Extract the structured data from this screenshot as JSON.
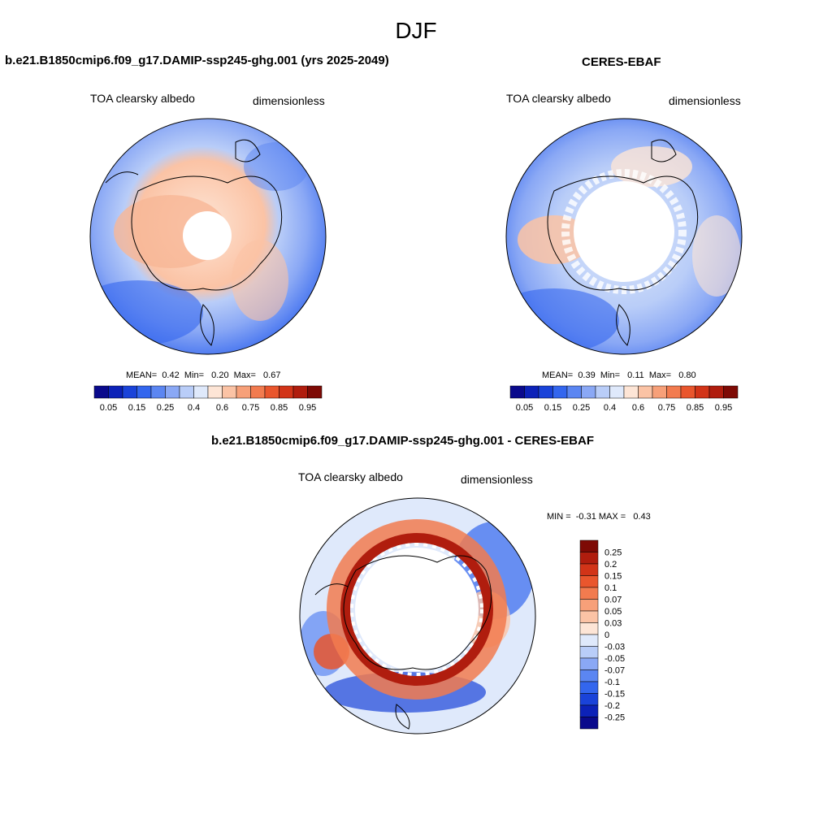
{
  "main_title": "DJF",
  "panels": [
    {
      "title": "b.e21.B1850cmip6.f09_g17.DAMIP-ssp245-ghg.001 (yrs 2025-2049)",
      "variable": "TOA clearsky albedo",
      "units": "dimensionless",
      "stats": "MEAN=  0.42  Min=   0.20  Max=   0.67"
    },
    {
      "title": "CERES-EBAF",
      "variable": "TOA clearsky albedo",
      "units": "dimensionless",
      "stats": "MEAN=  0.39  Min=   0.11  Max=   0.80"
    }
  ],
  "diff_panel": {
    "title": "b.e21.B1850cmip6.f09_g17.DAMIP-ssp245-ghg.001 - CERES-EBAF",
    "variable": "TOA clearsky albedo",
    "units": "dimensionless",
    "stats": "MIN =  -0.31 MAX =   0.43"
  },
  "colorbar_main": {
    "labels": [
      "0.05",
      "0.15",
      "0.25",
      "0.4",
      "0.6",
      "0.75",
      "0.85",
      "0.95"
    ],
    "colors": [
      "#0a0a8c",
      "#0c22b8",
      "#1a43d9",
      "#3366ee",
      "#5b86f2",
      "#8aa8f5",
      "#b9cdf8",
      "#dfe9fb",
      "#fde5d6",
      "#fbc3a5",
      "#f7a079",
      "#f27b4f",
      "#e9562d",
      "#d23418",
      "#b01d0e",
      "#7e0a05"
    ]
  },
  "colorbar_diff": {
    "labels": [
      "0.25",
      "0.2",
      "0.15",
      "0.1",
      "0.07",
      "0.05",
      "0.03",
      "0",
      "-0.03",
      "-0.05",
      "-0.07",
      "-0.1",
      "-0.15",
      "-0.2",
      "-0.25"
    ],
    "colors": [
      "#7e0a05",
      "#b01d0e",
      "#d23418",
      "#e9562d",
      "#f27b4f",
      "#f7a079",
      "#fbc3a5",
      "#fde5d6",
      "#dfe9fb",
      "#b9cdf8",
      "#8aa8f5",
      "#5b86f2",
      "#3366ee",
      "#1a43d9",
      "#0c22b8",
      "#0a0a8c"
    ]
  }
}
